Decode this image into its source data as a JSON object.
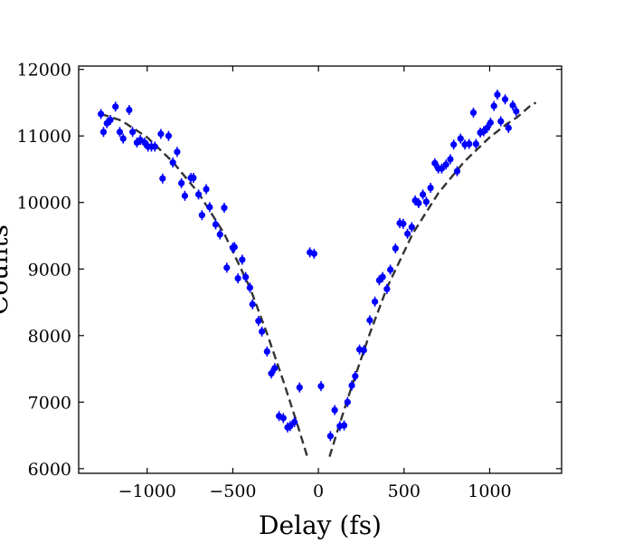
{
  "chart_data": {
    "type": "scatter",
    "xlabel": "Delay (fs)",
    "ylabel": "Counts",
    "xlim": [
      -1400,
      1420
    ],
    "ylim": [
      5930,
      12050
    ],
    "xticks": [
      -1000,
      -500,
      0,
      500,
      1000
    ],
    "xtick_labels": [
      "−1000",
      "−500",
      "0",
      "500",
      "1000"
    ],
    "yticks": [
      6000,
      7000,
      8000,
      9000,
      10000,
      11000,
      12000
    ],
    "ytick_labels": [
      "6000",
      "7000",
      "8000",
      "9000",
      "10000",
      "11000",
      "12000"
    ],
    "grid": false,
    "legend": "none",
    "colors": {
      "points": "#0000ff",
      "fit": "#333333",
      "axes": "#000000"
    },
    "series": [
      {
        "style": "points-with-errorbars",
        "yerr": 75,
        "points": [
          [
            -1270,
            11330
          ],
          [
            -1255,
            11060
          ],
          [
            -1235,
            11190
          ],
          [
            -1215,
            11240
          ],
          [
            -1185,
            11440
          ],
          [
            -1160,
            11060
          ],
          [
            -1140,
            10960
          ],
          [
            -1105,
            11390
          ],
          [
            -1085,
            11060
          ],
          [
            -1060,
            10900
          ],
          [
            -1040,
            10940
          ],
          [
            -1015,
            10900
          ],
          [
            -995,
            10840
          ],
          [
            -975,
            10840
          ],
          [
            -955,
            10840
          ],
          [
            -920,
            11030
          ],
          [
            -910,
            10360
          ],
          [
            -875,
            11000
          ],
          [
            -850,
            10600
          ],
          [
            -825,
            10760
          ],
          [
            -800,
            10290
          ],
          [
            -780,
            10100
          ],
          [
            -745,
            10370
          ],
          [
            -730,
            10370
          ],
          [
            -700,
            10120
          ],
          [
            -680,
            9810
          ],
          [
            -655,
            10200
          ],
          [
            -635,
            9930
          ],
          [
            -600,
            9670
          ],
          [
            -575,
            9520
          ],
          [
            -550,
            9920
          ],
          [
            -535,
            9020
          ],
          [
            -500,
            9320
          ],
          [
            -490,
            9330
          ],
          [
            -470,
            8860
          ],
          [
            -445,
            9140
          ],
          [
            -425,
            8880
          ],
          [
            -400,
            8720
          ],
          [
            -385,
            8470
          ],
          [
            -350,
            8220
          ],
          [
            -330,
            8060
          ],
          [
            -300,
            7760
          ],
          [
            -275,
            7430
          ],
          [
            -255,
            7510
          ],
          [
            -230,
            6790
          ],
          [
            -205,
            6760
          ],
          [
            -180,
            6620
          ],
          [
            -165,
            6640
          ],
          [
            -140,
            6700
          ],
          [
            -110,
            7220
          ],
          [
            -50,
            9250
          ],
          [
            -25,
            9230
          ],
          [
            15,
            7240
          ],
          [
            70,
            6490
          ],
          [
            95,
            6880
          ],
          [
            125,
            6640
          ],
          [
            150,
            6650
          ],
          [
            170,
            7000
          ],
          [
            195,
            7250
          ],
          [
            215,
            7390
          ],
          [
            240,
            7790
          ],
          [
            265,
            7780
          ],
          [
            300,
            8230
          ],
          [
            330,
            8510
          ],
          [
            355,
            8830
          ],
          [
            375,
            8880
          ],
          [
            400,
            8700
          ],
          [
            420,
            8990
          ],
          [
            450,
            9310
          ],
          [
            475,
            9690
          ],
          [
            495,
            9680
          ],
          [
            520,
            9530
          ],
          [
            545,
            9630
          ],
          [
            565,
            10030
          ],
          [
            585,
            9990
          ],
          [
            610,
            10120
          ],
          [
            630,
            10010
          ],
          [
            655,
            10220
          ],
          [
            680,
            10590
          ],
          [
            700,
            10510
          ],
          [
            720,
            10510
          ],
          [
            745,
            10570
          ],
          [
            770,
            10650
          ],
          [
            790,
            10870
          ],
          [
            810,
            10470
          ],
          [
            830,
            10960
          ],
          [
            855,
            10870
          ],
          [
            880,
            10880
          ],
          [
            905,
            11350
          ],
          [
            920,
            10880
          ],
          [
            945,
            11050
          ],
          [
            965,
            11070
          ],
          [
            985,
            11120
          ],
          [
            1005,
            11200
          ],
          [
            1025,
            11450
          ],
          [
            1045,
            11620
          ],
          [
            1065,
            11220
          ],
          [
            1090,
            11550
          ],
          [
            1110,
            11120
          ],
          [
            1135,
            11460
          ],
          [
            1155,
            11370
          ]
        ]
      },
      {
        "style": "dashed-line",
        "segments": [
          [
            [
              -1270,
              11330
            ],
            [
              -1150,
              11230
            ],
            [
              -1000,
              10980
            ],
            [
              -850,
              10610
            ],
            [
              -700,
              10140
            ],
            [
              -550,
              9530
            ],
            [
              -400,
              8720
            ],
            [
              -300,
              8030
            ],
            [
              -200,
              7280
            ],
            [
              -120,
              6640
            ],
            [
              -65,
              6180
            ]
          ],
          [
            [
              65,
              6180
            ],
            [
              120,
              6640
            ],
            [
              200,
              7280
            ],
            [
              300,
              8030
            ],
            [
              400,
              8720
            ],
            [
              550,
              9530
            ],
            [
              700,
              10140
            ],
            [
              850,
              10610
            ],
            [
              1000,
              10980
            ],
            [
              1100,
              11180
            ],
            [
              1160,
              11280
            ],
            [
              1240,
              11460
            ],
            [
              1270,
              11500
            ]
          ]
        ]
      }
    ]
  }
}
